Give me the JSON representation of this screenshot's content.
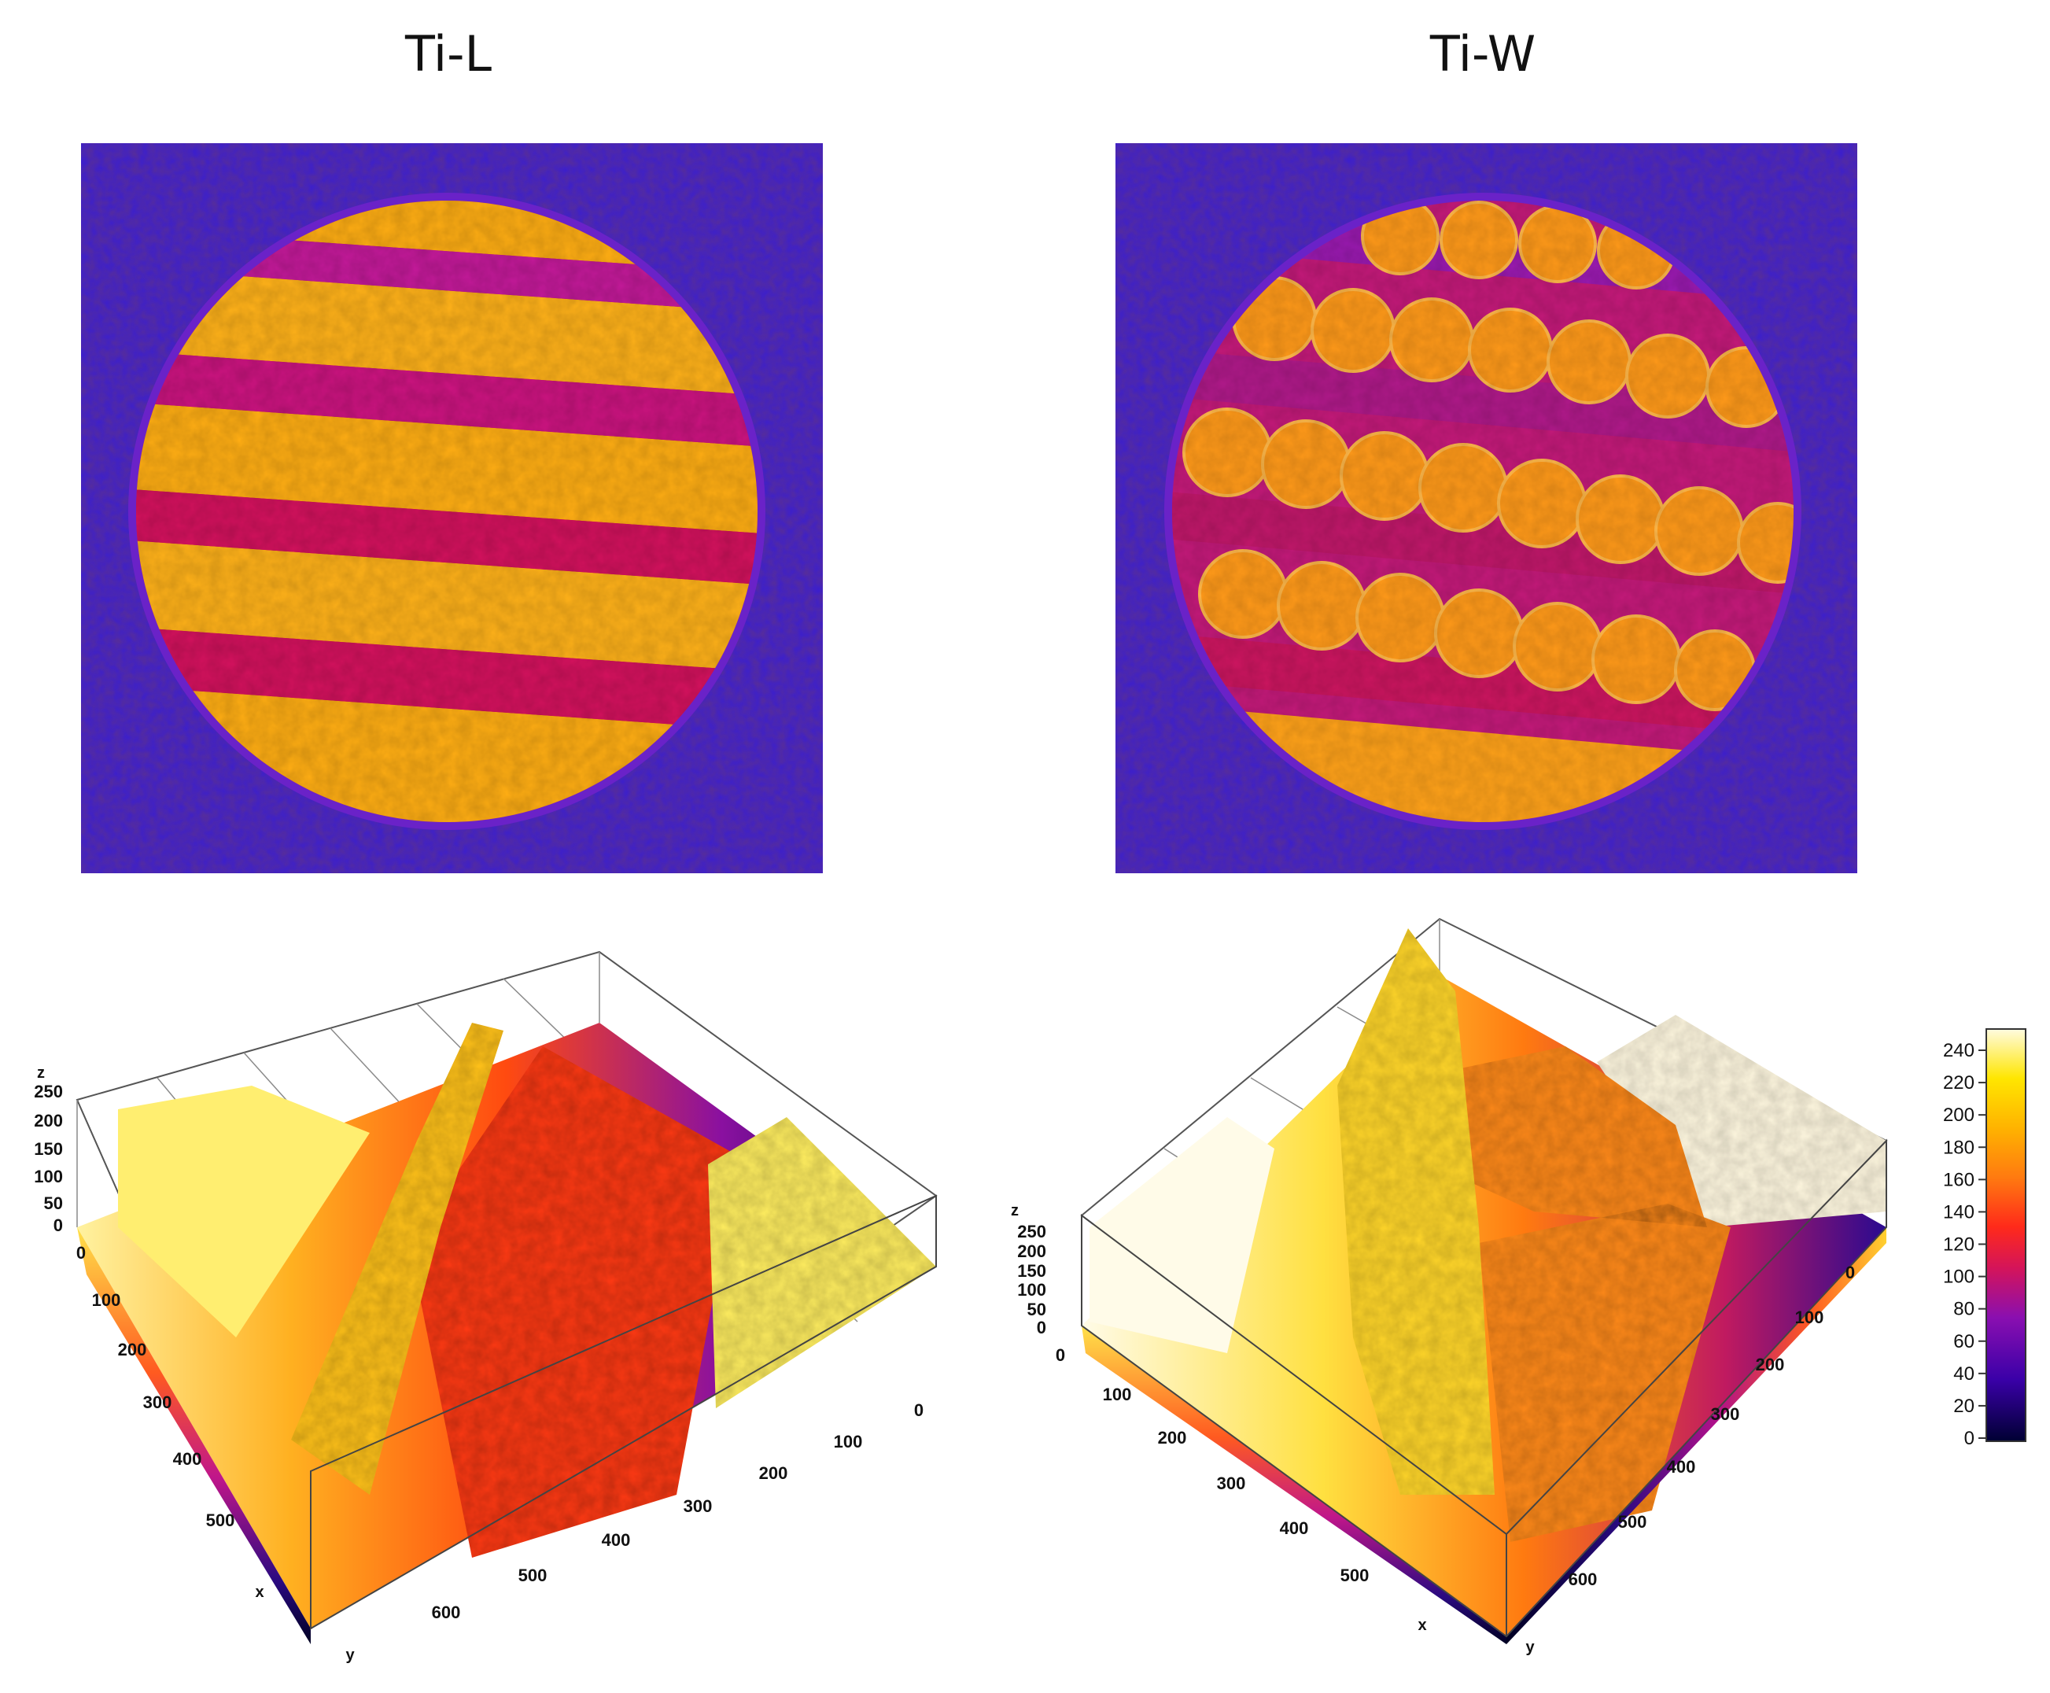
{
  "panels": [
    {
      "title": "Ti-L",
      "stripe_orientation": "length"
    },
    {
      "title": "Ti-W",
      "stripe_orientation": "width"
    }
  ],
  "surface_left": {
    "z_ticks": [
      "250",
      "200",
      "150",
      "100",
      "50",
      "0"
    ],
    "x_ticks": [
      "0",
      "100",
      "200",
      "300",
      "400",
      "500"
    ],
    "y_ticks": [
      "0",
      "100",
      "200",
      "300",
      "400",
      "500",
      "600"
    ],
    "x_label": "x",
    "y_label": "y",
    "z_label": "z"
  },
  "surface_right": {
    "z_ticks": [
      "250",
      "200",
      "150",
      "100",
      "50",
      "0"
    ],
    "x_ticks": [
      "0",
      "100",
      "200",
      "300",
      "400",
      "500"
    ],
    "y_ticks": [
      "0",
      "100",
      "200",
      "300",
      "400",
      "500",
      "600"
    ],
    "x_label": "x",
    "y_label": "y",
    "z_label": "z"
  },
  "colorbar": {
    "ticks": [
      "240",
      "220",
      "200",
      "180",
      "160",
      "140",
      "120",
      "100",
      "80",
      "60",
      "40",
      "20",
      "0"
    ],
    "colors": [
      "#000033",
      "#3a00a8",
      "#8a0fb0",
      "#d4145a",
      "#ff2a1a",
      "#ff7a10",
      "#ffb300",
      "#ffe600",
      "#fffbe0"
    ]
  }
}
